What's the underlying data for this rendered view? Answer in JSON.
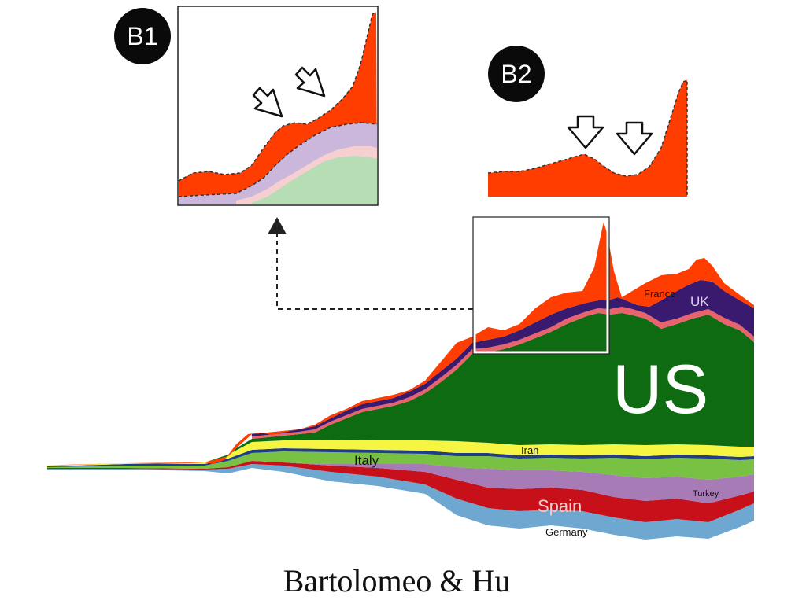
{
  "caption": "Bartolomeo & Hu",
  "badges": {
    "b1": "B1",
    "b2": "B2"
  },
  "colors": {
    "us": "#0f6b12",
    "france": "#ff3d00",
    "uk": "#3a1a6e",
    "pink": "#e8636b",
    "iran": "#f5f542",
    "blue_line": "#1f3d8a",
    "italy": "#78c142",
    "turkey": "#a77bb5",
    "spain": "#c8101a",
    "germany": "#6ea7cf"
  },
  "chart_data": [
    {
      "type": "area",
      "subtype": "streamgraph",
      "title": "",
      "xlabel": "",
      "ylabel": "",
      "series": [
        {
          "name": "France",
          "label": "France",
          "color": "#ff3d00",
          "values": [
            1,
            1,
            2,
            3,
            6,
            7,
            8,
            9,
            10,
            12,
            22,
            35,
            10,
            16,
            22,
            20,
            15
          ]
        },
        {
          "name": "UK",
          "label": "UK",
          "color": "#3a1a6e",
          "values": [
            0,
            0,
            0,
            0,
            0,
            1,
            1,
            2,
            3,
            4,
            5,
            6,
            8,
            10,
            12,
            12,
            10
          ]
        },
        {
          "name": "US",
          "label": "US",
          "color": "#0f6b12",
          "values": [
            0,
            0,
            0,
            0,
            1,
            3,
            8,
            20,
            38,
            55,
            70,
            76,
            78,
            80,
            82,
            82,
            80
          ]
        },
        {
          "name": "Iran",
          "label": "Iran",
          "color": "#f5f542",
          "values": [
            1,
            1,
            2,
            3,
            3,
            3,
            3,
            3,
            3,
            3,
            3,
            3,
            3,
            3,
            3,
            3,
            3
          ]
        },
        {
          "name": "Italy",
          "label": "Italy",
          "color": "#78c142",
          "values": [
            2,
            2,
            3,
            4,
            6,
            7,
            7,
            7,
            6,
            6,
            6,
            5,
            5,
            5,
            5,
            5,
            5
          ]
        },
        {
          "name": "Turkey",
          "label": "Turkey",
          "color": "#a77bb5",
          "values": [
            0,
            0,
            0,
            0,
            0,
            0,
            0,
            1,
            1,
            2,
            2,
            2,
            3,
            3,
            4,
            4,
            4
          ]
        },
        {
          "name": "Spain",
          "label": "Spain",
          "color": "#c8101a",
          "values": [
            0,
            0,
            0,
            1,
            3,
            5,
            6,
            7,
            8,
            8,
            8,
            7,
            7,
            7,
            7,
            7,
            6
          ]
        },
        {
          "name": "Germany",
          "label": "Germany",
          "color": "#6ea7cf",
          "values": [
            0,
            0,
            0,
            1,
            2,
            3,
            4,
            5,
            6,
            7,
            7,
            6,
            6,
            6,
            6,
            6,
            5
          ]
        }
      ],
      "grid": false,
      "legend": "inline labels"
    },
    {
      "type": "area",
      "panel": "B1",
      "title": "",
      "series": [
        {
          "name": "top band",
          "color": "#ff3d00",
          "values": [
            3,
            3,
            3,
            4,
            6,
            8,
            9,
            10,
            11,
            14,
            20
          ]
        },
        {
          "name": "lilac band",
          "color": "#cbb7dc",
          "values": [
            0,
            0,
            0,
            1,
            2,
            3,
            4,
            5,
            6,
            7,
            8
          ]
        },
        {
          "name": "green band",
          "color": "#b6ddb4",
          "values": [
            0,
            0,
            0,
            0,
            1,
            2,
            3,
            4,
            5,
            6,
            7
          ]
        }
      ],
      "annotations": [
        "two outline arrows marking the shoulder of the peak"
      ]
    },
    {
      "type": "area",
      "panel": "B2",
      "title": "",
      "series": [
        {
          "name": "single band",
          "color": "#ff3d00",
          "values": [
            1,
            1,
            2,
            4,
            5,
            3,
            2,
            2,
            3,
            9,
            16
          ]
        }
      ],
      "annotations": [
        "two outline arrows marking two troughs"
      ]
    }
  ]
}
